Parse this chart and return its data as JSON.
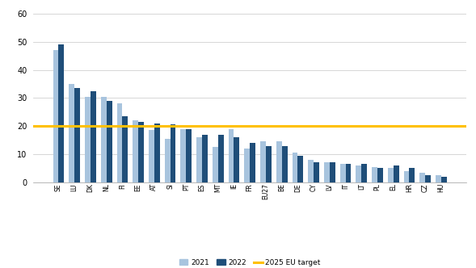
{
  "categories": [
    "SE",
    "LU",
    "DK",
    "NL",
    "FI",
    "EE",
    "AT",
    "SI",
    "PT",
    "ES",
    "MT",
    "IE",
    "FR",
    "EU27",
    "BE",
    "DE",
    "CY",
    "LV",
    "IT",
    "LT",
    "PL",
    "EL",
    "HR",
    "CZ",
    "HU"
  ],
  "values_2021": [
    47,
    35,
    30.5,
    30.5,
    28,
    22,
    18.5,
    15.5,
    19,
    16,
    12.5,
    19,
    12,
    14.5,
    14.5,
    10.5,
    8,
    7,
    6.5,
    6,
    5.5,
    5,
    4,
    3.5,
    2.5
  ],
  "values_2022": [
    49,
    33.5,
    32.5,
    29,
    23.5,
    21.5,
    21,
    20.5,
    19,
    17,
    17,
    16,
    14,
    13,
    13,
    9.5,
    7,
    7,
    6.5,
    6.5,
    5,
    6,
    5,
    2.5,
    2
  ],
  "color_2021": "#a8c4de",
  "color_2022": "#1f4e79",
  "target_value": 20,
  "target_color": "#FFC000",
  "target_label": "2025 EU target",
  "label_2021": "2021",
  "label_2022": "2022",
  "ylim": [
    0,
    62
  ],
  "yticks": [
    0,
    10,
    20,
    30,
    40,
    50,
    60
  ],
  "bar_width": 0.35,
  "figsize": [
    5.89,
    3.32
  ],
  "dpi": 100
}
